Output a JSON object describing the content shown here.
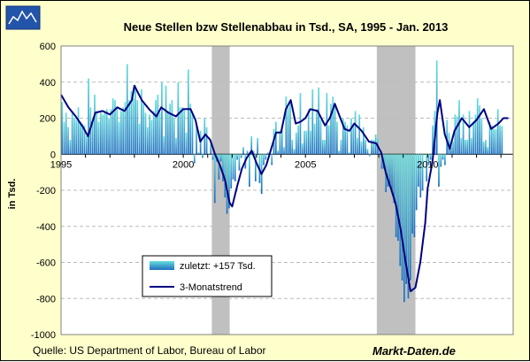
{
  "chart_data": {
    "type": "bar",
    "title": "Neue Stellen bzw Stellenabbau in Tsd., SA, 1995 - Jan. 2013",
    "ylabel": "in Tsd.",
    "ylim": [
      -1000,
      600
    ],
    "yticks": [
      "600",
      "400",
      "200",
      "0",
      "-200",
      "-400",
      "-600",
      "-800",
      "-1000"
    ],
    "yticks_values": [
      600,
      400,
      200,
      0,
      -200,
      -400,
      -600,
      -800,
      -1000
    ],
    "xrange": [
      1995.0,
      2013.5
    ],
    "xticks": [
      {
        "label": "1995",
        "value": 1995.0
      },
      {
        "label": "2000",
        "value": 2000.0
      },
      {
        "label": "2005",
        "value": 2005.0
      },
      {
        "label": "2010",
        "value": 2010.0
      }
    ],
    "grid": true,
    "legend_placement": "bottom-left",
    "recessions": [
      [
        2001.17,
        2001.9
      ],
      [
        2007.92,
        2009.5
      ]
    ],
    "colors": {
      "bar_top": "#33cccc",
      "bar_bottom": "#1f6fbf",
      "trend": "#000080",
      "recession": "#c0c0c0",
      "plot_bg": "#ffffff",
      "page_bg": "#ffffcc"
    },
    "series": [
      {
        "name": "zuletzt: +157 Tsd.",
        "kind": "bar",
        "annual": [
          {
            "year": 1995,
            "monthly": [
              290,
              180,
              230,
              150,
              80,
              240,
              200,
              190,
              260,
              180,
              170,
              160
            ]
          },
          {
            "year": 1996,
            "monthly": [
              100,
              420,
              260,
              180,
              330,
              240,
              180,
              230,
              220,
              240,
              250,
              200
            ]
          },
          {
            "year": 1997,
            "monthly": [
              250,
              310,
              300,
              260,
              180,
              240,
              260,
              290,
              500,
              300,
              350,
              310
            ]
          },
          {
            "year": 1998,
            "monthly": [
              380,
              300,
              170,
              360,
              280,
              230,
              150,
              220,
              190,
              240,
              300,
              330
            ]
          },
          {
            "year": 1999,
            "monthly": [
              230,
              400,
              100,
              380,
              240,
              280,
              300,
              200,
              90,
              400,
              260,
              260
            ]
          },
          {
            "year": 2000,
            "monthly": [
              250,
              120,
              470,
              280,
              230,
              -50,
              170,
              10,
              130,
              -20,
              200,
              150
            ]
          },
          {
            "year": 2001,
            "monthly": [
              0,
              60,
              -30,
              -270,
              -40,
              -140,
              -40,
              -150,
              -240,
              -330,
              -300,
              -190
            ]
          },
          {
            "year": 2002,
            "monthly": [
              -140,
              -150,
              -30,
              -90,
              -20,
              40,
              -80,
              20,
              -180,
              100,
              20,
              -150
            ]
          },
          {
            "year": 2003,
            "monthly": [
              90,
              -160,
              -220,
              -60,
              -30,
              10,
              0,
              -60,
              140,
              180,
              20,
              130
            ]
          },
          {
            "year": 2004,
            "monthly": [
              150,
              40,
              320,
              260,
              300,
              80,
              30,
              120,
              160,
              340,
              60,
              130
            ]
          },
          {
            "year": 2005,
            "monthly": [
              130,
              250,
              130,
              360,
              170,
              250,
              370,
              190,
              80,
              80,
              340,
              160
            ]
          },
          {
            "year": 2006,
            "monthly": [
              280,
              320,
              280,
              180,
              20,
              80,
              200,
              180,
              160,
              10,
              200,
              170
            ]
          },
          {
            "year": 2007,
            "monthly": [
              240,
              90,
              220,
              70,
              150,
              80,
              30,
              -10,
              80,
              80,
              110,
              90
            ]
          },
          {
            "year": 2008,
            "monthly": [
              10,
              -80,
              -80,
              -210,
              -180,
              -170,
              -210,
              -270,
              -460,
              -480,
              -620,
              -700
            ]
          },
          {
            "year": 2009,
            "monthly": [
              -820,
              -720,
              -800,
              -700,
              -440,
              -460,
              -310,
              -180,
              -240,
              -200,
              0,
              -150
            ]
          },
          {
            "year": 2010,
            "monthly": [
              -60,
              -30,
              160,
              240,
              520,
              -180,
              -70,
              -30,
              -60,
              190,
              120,
              60
            ]
          },
          {
            "year": 2011,
            "monthly": [
              70,
              220,
              210,
              300,
              90,
              220,
              80,
              80,
              240,
              90,
              180,
              220
            ]
          },
          {
            "year": 2012,
            "monthly": [
              310,
              270,
              200,
              70,
              80,
              40,
              180,
              160,
              140,
              140,
              250,
              160
            ]
          },
          {
            "year": 2013,
            "monthly": [
              157
            ]
          }
        ]
      },
      {
        "name": "3-Monatstrend",
        "kind": "line",
        "points": [
          [
            1995.0,
            330
          ],
          [
            1995.3,
            260
          ],
          [
            1995.6,
            210
          ],
          [
            1995.9,
            150
          ],
          [
            1996.1,
            100
          ],
          [
            1996.4,
            230
          ],
          [
            1996.7,
            240
          ],
          [
            1997.0,
            220
          ],
          [
            1997.3,
            260
          ],
          [
            1997.6,
            240
          ],
          [
            1997.9,
            300
          ],
          [
            1998.0,
            380
          ],
          [
            1998.3,
            300
          ],
          [
            1998.6,
            250
          ],
          [
            1998.9,
            210
          ],
          [
            1999.1,
            260
          ],
          [
            1999.4,
            230
          ],
          [
            1999.7,
            210
          ],
          [
            2000.0,
            250
          ],
          [
            2000.3,
            250
          ],
          [
            2000.5,
            190
          ],
          [
            2000.7,
            70
          ],
          [
            2000.9,
            110
          ],
          [
            2001.1,
            80
          ],
          [
            2001.3,
            0
          ],
          [
            2001.5,
            -60
          ],
          [
            2001.7,
            -140
          ],
          [
            2001.9,
            -270
          ],
          [
            2002.0,
            -290
          ],
          [
            2002.2,
            -180
          ],
          [
            2002.4,
            -80
          ],
          [
            2002.6,
            -20
          ],
          [
            2002.8,
            20
          ],
          [
            2003.0,
            -50
          ],
          [
            2003.2,
            -110
          ],
          [
            2003.4,
            -60
          ],
          [
            2003.6,
            30
          ],
          [
            2003.8,
            120
          ],
          [
            2004.0,
            120
          ],
          [
            2004.2,
            250
          ],
          [
            2004.4,
            300
          ],
          [
            2004.6,
            170
          ],
          [
            2004.8,
            180
          ],
          [
            2005.0,
            200
          ],
          [
            2005.2,
            250
          ],
          [
            2005.5,
            240
          ],
          [
            2005.8,
            160
          ],
          [
            2006.0,
            200
          ],
          [
            2006.2,
            280
          ],
          [
            2006.4,
            210
          ],
          [
            2006.6,
            140
          ],
          [
            2006.8,
            130
          ],
          [
            2007.0,
            170
          ],
          [
            2007.3,
            130
          ],
          [
            2007.6,
            70
          ],
          [
            2007.9,
            60
          ],
          [
            2008.1,
            10
          ],
          [
            2008.3,
            -110
          ],
          [
            2008.5,
            -190
          ],
          [
            2008.7,
            -280
          ],
          [
            2008.9,
            -420
          ],
          [
            2009.1,
            -600
          ],
          [
            2009.3,
            -760
          ],
          [
            2009.5,
            -740
          ],
          [
            2009.7,
            -600
          ],
          [
            2009.9,
            -380
          ],
          [
            2010.0,
            -190
          ],
          [
            2010.2,
            -40
          ],
          [
            2010.4,
            230
          ],
          [
            2010.5,
            300
          ],
          [
            2010.7,
            110
          ],
          [
            2010.9,
            30
          ],
          [
            2011.1,
            130
          ],
          [
            2011.4,
            200
          ],
          [
            2011.7,
            150
          ],
          [
            2012.0,
            190
          ],
          [
            2012.3,
            250
          ],
          [
            2012.6,
            140
          ],
          [
            2012.9,
            170
          ],
          [
            2013.1,
            200
          ],
          [
            2013.3,
            200
          ]
        ]
      }
    ],
    "source": "Quelle: US Department of Labor, Bureau of Labor",
    "brand": "Markt-Daten.de"
  }
}
